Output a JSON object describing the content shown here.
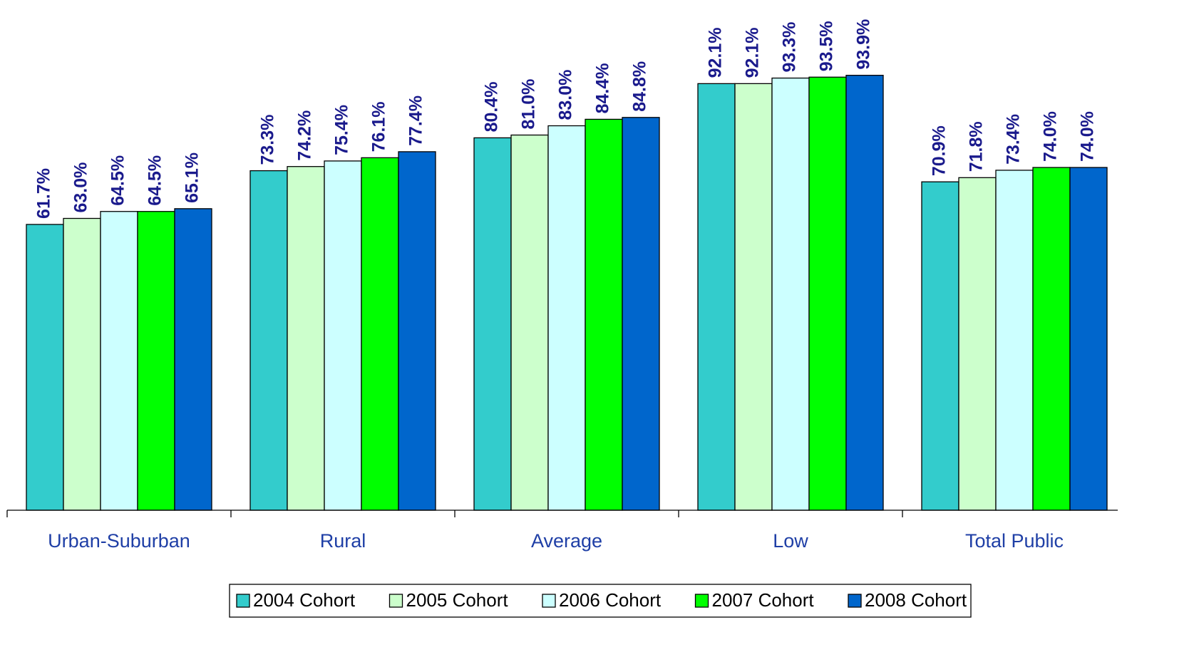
{
  "chart_data": {
    "type": "bar",
    "categories": [
      "Urban-Suburban",
      "Rural",
      "Average",
      "Low",
      "Total Public"
    ],
    "series": [
      {
        "name": "2004 Cohort",
        "color": "#33cccc",
        "values": [
          61.7,
          73.3,
          80.4,
          92.1,
          70.9
        ],
        "value_labels": [
          "61.7%",
          "73.3%",
          "80.4%",
          "92.1%",
          "70.9%"
        ]
      },
      {
        "name": "2005 Cohort",
        "color": "#ccffcc",
        "values": [
          63.0,
          74.2,
          81.0,
          92.1,
          71.8
        ],
        "value_labels": [
          "63.0%",
          "74.2%",
          "81.0%",
          "92.1%",
          "71.8%"
        ]
      },
      {
        "name": "2006 Cohort",
        "color": "#ccffff",
        "values": [
          64.5,
          75.4,
          83.0,
          93.3,
          73.4
        ],
        "value_labels": [
          "64.5%",
          "75.4%",
          "83.0%",
          "93.3%",
          "73.4%"
        ]
      },
      {
        "name": "2007 Cohort",
        "color": "#00ff00",
        "values": [
          64.5,
          76.1,
          84.4,
          93.5,
          74.0
        ],
        "value_labels": [
          "64.5%",
          "76.1%",
          "84.4%",
          "93.5%",
          "74.0%"
        ]
      },
      {
        "name": "2008 Cohort",
        "color": "#0066cc",
        "values": [
          65.1,
          77.4,
          84.8,
          93.9,
          74.0
        ],
        "value_labels": [
          "65.1%",
          "77.4%",
          "84.8%",
          "93.9%",
          "74.0%"
        ]
      }
    ],
    "ylim": [
      0,
      100
    ],
    "legend": "bottom"
  }
}
